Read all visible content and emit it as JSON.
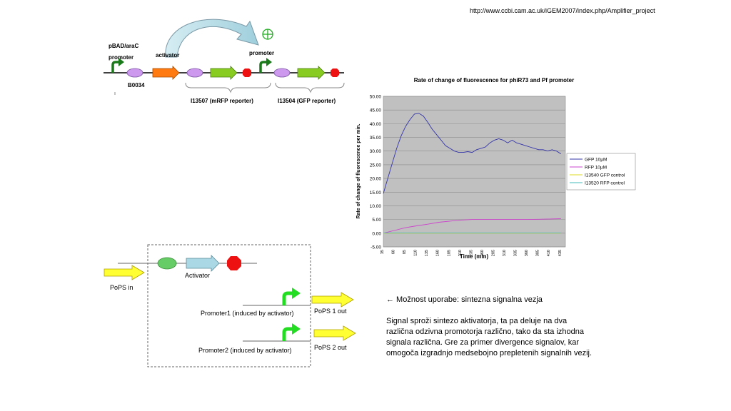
{
  "source_url": "http://www.ccbi.cam.ac.uk/iGEM2007/index.php/Amplifier_project",
  "top_diagram": {
    "pbad_label_1": "pBAD/araC",
    "pbad_label_2": "promoter",
    "activator_label": "activator",
    "promoter_label": "promoter",
    "b0034_label": "B0034",
    "i13507_label": "I13507 (mRFP reporter)",
    "i13504_label": "I13504 (GFP reporter)"
  },
  "chart_data": {
    "type": "line",
    "title": "Rate of change of fluorescence for phiR73 and Pf promoter",
    "xlabel": "Time (min)",
    "ylabel": "Rate of change of fluorescence per min.",
    "ylim": [
      -5,
      50
    ],
    "yticks": [
      "50.00",
      "45.00",
      "40.00",
      "35.00",
      "30.00",
      "25.00",
      "20.00",
      "15.00",
      "10.00",
      "5.00",
      "0.00",
      "-5.00"
    ],
    "xticks": [
      "35",
      "60",
      "85",
      "110",
      "135",
      "160",
      "185",
      "210",
      "235",
      "260",
      "285",
      "310",
      "335",
      "360",
      "385",
      "410",
      "435"
    ],
    "grid": true,
    "legend_position": "right",
    "series": [
      {
        "name": "GFP 10μM",
        "color": "#3333aa",
        "x": [
          35,
          45,
          55,
          65,
          75,
          85,
          95,
          105,
          115,
          125,
          135,
          145,
          155,
          165,
          175,
          185,
          195,
          205,
          215,
          225,
          235,
          245,
          255,
          265,
          275,
          285,
          295,
          305,
          315,
          325,
          335,
          345,
          355,
          365,
          375,
          385,
          395,
          405,
          415,
          425,
          435
        ],
        "y": [
          14.5,
          20,
          25.5,
          31,
          35.5,
          39,
          41.5,
          43.5,
          43.8,
          42.8,
          40.5,
          38,
          36,
          34,
          32,
          31,
          30,
          29.5,
          29.5,
          29.8,
          29.5,
          30.5,
          31,
          31.5,
          33,
          34,
          34.5,
          34,
          33,
          34,
          33,
          32.5,
          32,
          31.5,
          31,
          30.5,
          30.5,
          30,
          30.5,
          30,
          29
        ]
      },
      {
        "name": "RFP 10μM",
        "color": "#cc44cc",
        "x": [
          35,
          60,
          85,
          110,
          135,
          160,
          185,
          210,
          235,
          260,
          285,
          310,
          335,
          360,
          385,
          410,
          435
        ],
        "y": [
          0,
          1,
          2,
          2.7,
          3.3,
          4,
          4.4,
          4.8,
          5,
          5,
          5,
          5,
          5,
          5,
          5.1,
          5.2,
          5.3
        ]
      },
      {
        "name": "I13540 GFP control",
        "color": "#dddd22",
        "x": [
          35,
          435
        ],
        "y": [
          0,
          0
        ]
      },
      {
        "name": "I13520 RFP control",
        "color": "#44bbbb",
        "x": [
          35,
          435
        ],
        "y": [
          0.1,
          0.1
        ]
      }
    ]
  },
  "bottom_diagram": {
    "pops_in": "PoPS in",
    "activator": "Activator",
    "promoter1": "Promoter1 (induced by activator)",
    "promoter2": "Promoter2 (induced by activator)",
    "pops1_out": "PoPS 1 out",
    "pops2_out": "PoPS 2 out"
  },
  "note": {
    "heading": "← Možnost uporabe: sintezna signalna vezja",
    "body": "Signal sproži sintezo aktivatorja, ta pa deluje na dva različna odzivna promotorja različno, tako da sta izhodna signala različna. Gre za primer divergence signalov, kar omogoča izgradnjo medsebojno prepletenih signalnih vezij."
  }
}
